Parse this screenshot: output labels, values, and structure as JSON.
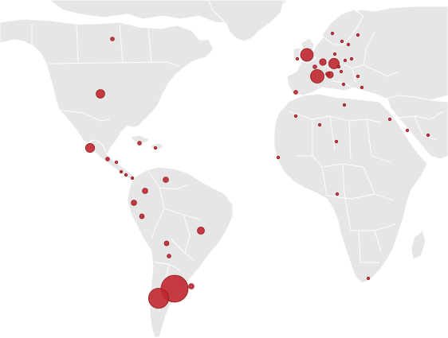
{
  "map": {
    "type": "bubble-map",
    "base_color": "#e6e6e6",
    "border_color": "#ffffff",
    "bubble_fill": "#c0272d",
    "bubble_stroke": "#8e1a1f",
    "legend": "none"
  },
  "bubbles": [
    {
      "name": "argentina",
      "magnitude": 100
    },
    {
      "name": "chile",
      "magnitude": 55
    },
    {
      "name": "uk",
      "magnitude": 22
    },
    {
      "name": "france",
      "magnitude": 25
    },
    {
      "name": "germany",
      "magnitude": 15
    },
    {
      "name": "usa",
      "magnitude": 10
    },
    {
      "name": "mexico",
      "magnitude": 11
    },
    {
      "name": "netherlands",
      "magnitude": 6
    },
    {
      "name": "italy",
      "magnitude": 6
    },
    {
      "name": "brazil",
      "magnitude": 7
    },
    {
      "name": "uruguay",
      "magnitude": 4
    },
    {
      "name": "colombia",
      "magnitude": 4
    },
    {
      "name": "ecuador",
      "magnitude": 4
    },
    {
      "name": "peru",
      "magnitude": 3
    },
    {
      "name": "venezuela",
      "magnitude": 4
    },
    {
      "name": "bolivia",
      "magnitude": 3
    },
    {
      "name": "paraguay",
      "magnitude": 2
    },
    {
      "name": "spain",
      "magnitude": 2
    },
    {
      "name": "canada",
      "magnitude": 2
    },
    {
      "name": "cuba",
      "magnitude": 2
    },
    {
      "name": "dominican-republic",
      "magnitude": 1
    },
    {
      "name": "guatemala",
      "magnitude": 2
    },
    {
      "name": "honduras",
      "magnitude": 1
    },
    {
      "name": "nicaragua",
      "magnitude": 1
    },
    {
      "name": "costa-rica",
      "magnitude": 1
    },
    {
      "name": "panama",
      "magnitude": 1
    },
    {
      "name": "belgium",
      "magnitude": 2
    },
    {
      "name": "switzerland",
      "magnitude": 2
    },
    {
      "name": "poland",
      "magnitude": 1
    },
    {
      "name": "czechia",
      "magnitude": 1
    },
    {
      "name": "austria",
      "magnitude": 1
    },
    {
      "name": "sweden",
      "magnitude": 1
    },
    {
      "name": "norway",
      "magnitude": 1
    },
    {
      "name": "finland",
      "magnitude": 1
    },
    {
      "name": "denmark",
      "magnitude": 1
    },
    {
      "name": "ireland",
      "magnitude": 1
    },
    {
      "name": "portugal",
      "magnitude": 1
    },
    {
      "name": "greece",
      "magnitude": 1
    },
    {
      "name": "croatia",
      "magnitude": 1
    },
    {
      "name": "romania",
      "magnitude": 1
    },
    {
      "name": "ukraine",
      "magnitude": 1
    },
    {
      "name": "russia",
      "magnitude": 1
    },
    {
      "name": "morocco",
      "magnitude": 1
    },
    {
      "name": "algeria",
      "magnitude": 1
    },
    {
      "name": "tunisia",
      "magnitude": 1
    },
    {
      "name": "israel",
      "magnitude": 1
    },
    {
      "name": "saudi-arabia",
      "magnitude": 1
    },
    {
      "name": "uae",
      "magnitude": 1
    },
    {
      "name": "senegal",
      "magnitude": 1
    },
    {
      "name": "gabon",
      "magnitude": 1
    },
    {
      "name": "south-africa",
      "magnitude": 1
    }
  ]
}
